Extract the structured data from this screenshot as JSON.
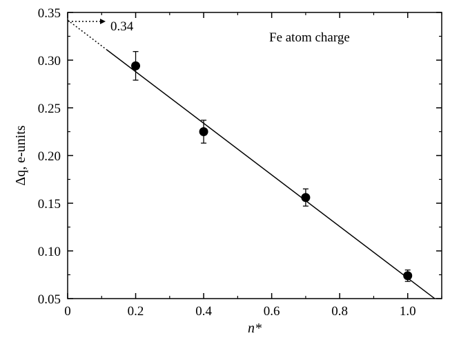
{
  "chart_data": {
    "type": "scatter",
    "title": "",
    "xlabel": "n*",
    "ylabel": "Δq, e-units",
    "xlim": [
      0,
      1.1
    ],
    "ylim": [
      0.05,
      0.35
    ],
    "x_ticks": [
      0,
      0.2,
      0.4,
      0.6,
      0.8,
      1.0
    ],
    "x_tick_labels": [
      "0",
      "0.2",
      "0.4",
      "0.6",
      "0.8",
      "1.0"
    ],
    "y_ticks": [
      0.05,
      0.1,
      0.15,
      0.2,
      0.25,
      0.3,
      0.35
    ],
    "y_tick_labels": [
      "0.05",
      "0.10",
      "0.15",
      "0.20",
      "0.25",
      "0.30",
      "0.35"
    ],
    "grid": false,
    "legend": "none",
    "series": [
      {
        "name": "Fe atom charge",
        "x": [
          0.2,
          0.4,
          0.7,
          1.0
        ],
        "y": [
          0.294,
          0.225,
          0.156,
          0.074
        ],
        "yerr": [
          0.015,
          0.012,
          0.009,
          0.006
        ]
      }
    ],
    "fit_line": {
      "solid_x": [
        0.115,
        1.08
      ],
      "dotted_x": [
        0,
        0.115
      ],
      "intercept": 0.342,
      "slope": -0.2705
    },
    "annotations": [
      {
        "text": "Fe atom charge"
      },
      {
        "text": "0.34",
        "points_to_y": 0.34
      }
    ]
  }
}
